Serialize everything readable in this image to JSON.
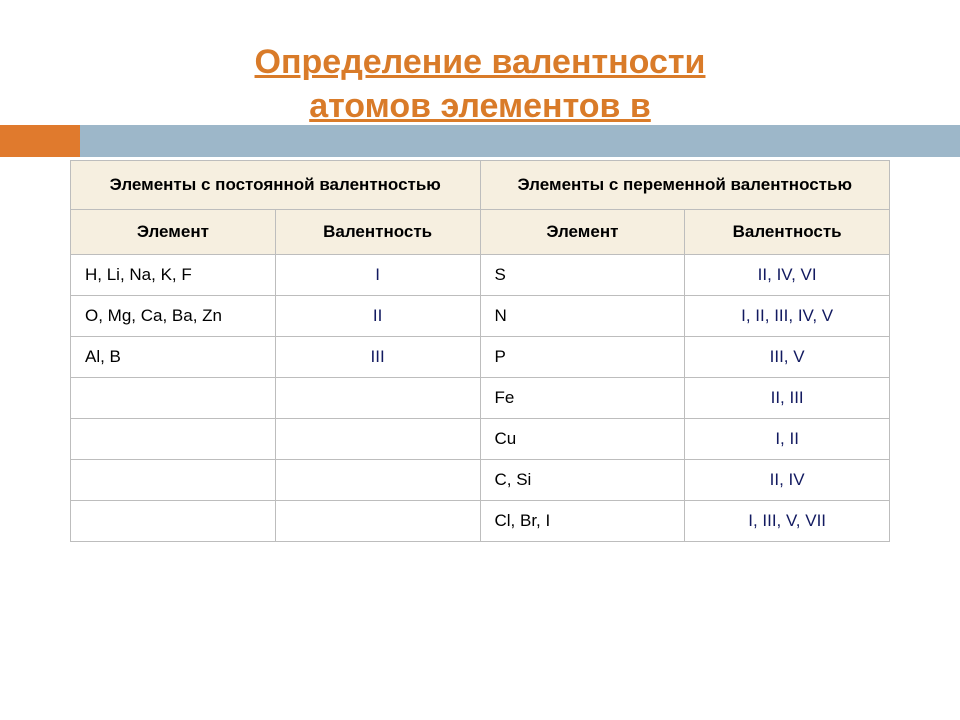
{
  "title": {
    "line1": "Определение валентности",
    "line2": "атомов элементов в"
  },
  "colors": {
    "accent": "#e07a2d",
    "blue_band": "#9db7c9",
    "header_bg": "#f6efe0",
    "border": "#bdbdbd",
    "title_color": "#d97b29",
    "valence_text": "#121a60"
  },
  "table": {
    "group_headers": {
      "constant": "Элементы с постоянной валентностью",
      "variable": "Элементы с переменной валентностью"
    },
    "col_headers": {
      "element": "Элемент",
      "valence": "Валентность"
    },
    "rows": [
      {
        "const_elem": "H, Li, Na, K, F",
        "const_val": "I",
        "var_elem": "S",
        "var_val": "II, IV, VI"
      },
      {
        "const_elem": "O, Mg, Ca, Ba, Zn",
        "const_val": "II",
        "var_elem": "N",
        "var_val": "I, II, III, IV, V"
      },
      {
        "const_elem": "Al, B",
        "const_val": "III",
        "var_elem": "P",
        "var_val": "III, V"
      },
      {
        "const_elem": "",
        "const_val": "",
        "var_elem": "Fe",
        "var_val": "II, III"
      },
      {
        "const_elem": "",
        "const_val": "",
        "var_elem": "Cu",
        "var_val": "I, II"
      },
      {
        "const_elem": "",
        "const_val": "",
        "var_elem": "C, Si",
        "var_val": "II, IV"
      },
      {
        "const_elem": "",
        "const_val": "",
        "var_elem": "Cl, Br, I",
        "var_val": "I, III, V, VII"
      }
    ]
  }
}
